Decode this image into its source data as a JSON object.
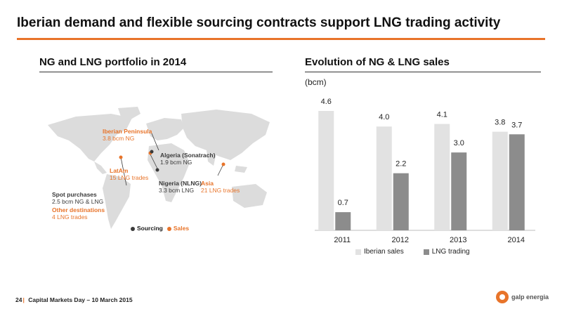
{
  "slide": {
    "title": "Iberian demand and flexible sourcing contracts support LNG trading activity"
  },
  "left_panel": {
    "title": "NG and LNG portfolio in 2014",
    "map": {
      "labels": [
        {
          "id": "iberian",
          "name": "Iberian Peninsula",
          "value": "3.8 bcm NG",
          "type": "sales"
        },
        {
          "id": "algeria",
          "name": "Algeria (Sonatrach)",
          "value": "1.9 bcm NG",
          "type": "sourcing"
        },
        {
          "id": "latam",
          "name": "LatAm",
          "value": "15 LNG trades",
          "type": "sales"
        },
        {
          "id": "nigeria",
          "name": "Nigeria (NLNG)",
          "value": "3.3 bcm LNG",
          "type": "sourcing"
        },
        {
          "id": "asia",
          "name": "Asia",
          "value": "21 LNG trades",
          "type": "sales"
        },
        {
          "id": "spot",
          "name": "Spot purchases",
          "value": "2.5 bcm NG & LNG",
          "type": "sourcing"
        },
        {
          "id": "other",
          "name": "Other destinations",
          "value": "4 LNG trades",
          "type": "sales"
        }
      ],
      "legend": {
        "sourcing": "Sourcing",
        "sales": "Sales"
      },
      "colors": {
        "sourcing": "#3a3a3a",
        "sales": "#e8742a",
        "land": "#dcdcdc"
      }
    }
  },
  "right_panel": {
    "title": "Evolution of NG & LNG sales",
    "unit": "(bcm)"
  },
  "chart_data": {
    "type": "bar",
    "title": "Evolution of NG & LNG sales",
    "ylabel": "(bcm)",
    "categories": [
      "2011",
      "2012",
      "2013",
      "2014"
    ],
    "series": [
      {
        "name": "Iberian sales",
        "values": [
          4.6,
          4.0,
          4.1,
          3.8
        ],
        "color": "#e2e2e2",
        "labels": [
          "4.6",
          "4.0",
          "4.1",
          "3.8"
        ]
      },
      {
        "name": "LNG trading",
        "values": [
          0.7,
          2.2,
          3.0,
          3.7
        ],
        "color": "#8c8c8c",
        "labels": [
          "0.7",
          "2.2",
          "3.0",
          "3.7"
        ]
      }
    ],
    "ylim": [
      0,
      4.6
    ],
    "grid": false,
    "legend_position": "bottom"
  },
  "footer": {
    "page": "24",
    "text": "Capital Markets Day – 10 March 2015"
  },
  "logo": {
    "text": "galp energia",
    "color": "#e8742a"
  }
}
